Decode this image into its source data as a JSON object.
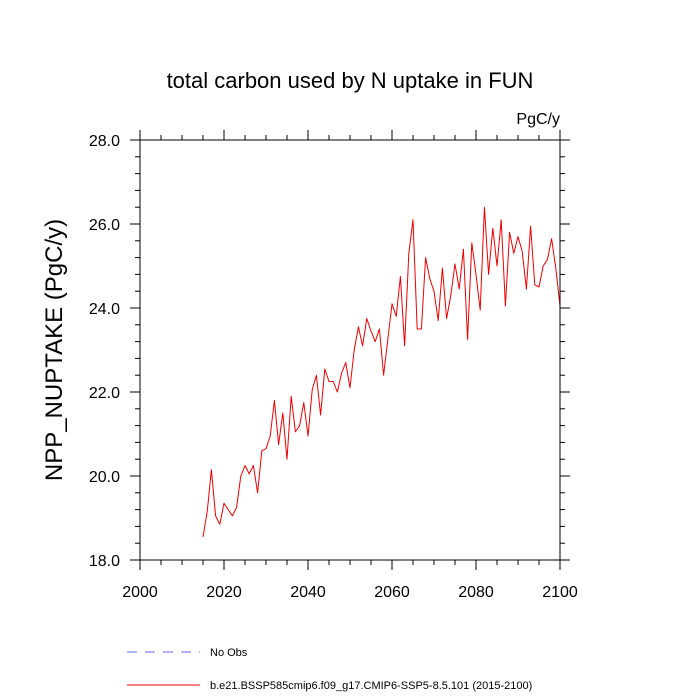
{
  "chart_data": {
    "type": "line",
    "title": "total carbon used by N uptake in FUN",
    "units": "PgC/y",
    "ylabel": "NPP_NUPTAKE  (PgC/y)",
    "xlabel": "",
    "xlim": [
      2000,
      2100
    ],
    "ylim": [
      18.0,
      28.0
    ],
    "x_major_ticks": [
      2000,
      2020,
      2040,
      2060,
      2080,
      2100
    ],
    "x_minor_step": 5,
    "y_major_ticks": [
      18.0,
      20.0,
      22.0,
      24.0,
      26.0,
      28.0
    ],
    "y_minor_step": 0.4,
    "grid": false,
    "x_tick_labels": [
      "2000",
      "2020",
      "2040",
      "2060",
      "2080",
      "2100"
    ],
    "y_tick_labels": [
      "18.0",
      "20.0",
      "22.0",
      "24.0",
      "26.0",
      "28.0"
    ],
    "legend_position": "bottom",
    "series": [
      {
        "name": "No Obs",
        "color": "#6666ee",
        "style": "dashed",
        "x": [],
        "y": []
      },
      {
        "name": "b.e21.BSSP585cmip6.f09_g17.CMIP6-SSP5-8.5.101 (2015-2100)",
        "color": "#ee0000",
        "style": "solid",
        "x": [
          2015,
          2016,
          2017,
          2018,
          2019,
          2020,
          2021,
          2022,
          2023,
          2024,
          2025,
          2026,
          2027,
          2028,
          2029,
          2030,
          2031,
          2032,
          2033,
          2034,
          2035,
          2036,
          2037,
          2038,
          2039,
          2040,
          2041,
          2042,
          2043,
          2044,
          2045,
          2046,
          2047,
          2048,
          2049,
          2050,
          2051,
          2052,
          2053,
          2054,
          2055,
          2056,
          2057,
          2058,
          2059,
          2060,
          2061,
          2062,
          2063,
          2064,
          2065,
          2066,
          2067,
          2068,
          2069,
          2070,
          2071,
          2072,
          2073,
          2074,
          2075,
          2076,
          2077,
          2078,
          2079,
          2080,
          2081,
          2082,
          2083,
          2084,
          2085,
          2086,
          2087,
          2088,
          2089,
          2090,
          2091,
          2092,
          2093,
          2094,
          2095,
          2096,
          2097,
          2098,
          2099,
          2100
        ],
        "y": [
          18.55,
          19.15,
          20.15,
          19.05,
          18.85,
          19.35,
          19.2,
          19.05,
          19.25,
          20.0,
          20.25,
          20.05,
          20.25,
          19.6,
          20.6,
          20.65,
          20.95,
          21.8,
          20.75,
          21.5,
          20.4,
          21.9,
          21.05,
          21.2,
          21.75,
          20.95,
          22.05,
          22.4,
          21.45,
          22.55,
          22.25,
          22.25,
          22.0,
          22.45,
          22.7,
          22.1,
          23.0,
          23.55,
          23.1,
          23.75,
          23.45,
          23.2,
          23.5,
          22.4,
          23.25,
          24.1,
          23.8,
          24.75,
          23.1,
          25.3,
          26.1,
          23.5,
          23.5,
          25.2,
          24.7,
          24.4,
          23.7,
          24.95,
          23.75,
          24.3,
          25.05,
          24.45,
          25.4,
          23.25,
          25.55,
          24.8,
          23.95,
          26.4,
          24.8,
          25.9,
          25.0,
          26.1,
          24.05,
          25.8,
          25.3,
          25.7,
          25.35,
          24.45,
          25.95,
          24.55,
          24.5,
          25.0,
          25.15,
          25.65,
          24.95,
          24.05
        ]
      }
    ]
  }
}
